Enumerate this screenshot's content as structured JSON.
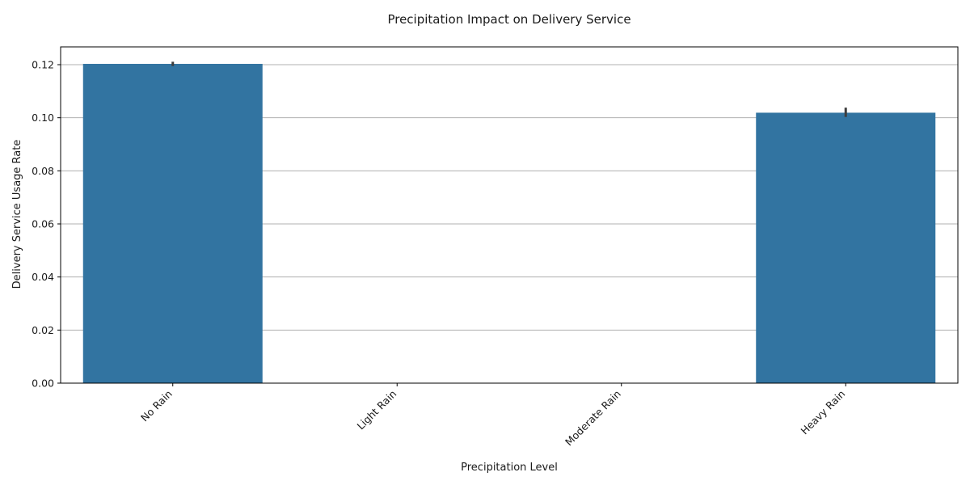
{
  "chart_data": {
    "type": "bar",
    "title": "Precipitation Impact on Delivery Service",
    "xlabel": "Precipitation Level",
    "ylabel": "Delivery Service Usage Rate",
    "categories": [
      "No Rain",
      "Light Rain",
      "Moderate Rain",
      "Heavy Rain"
    ],
    "values": [
      0.1203,
      null,
      null,
      0.1019
    ],
    "error_bars": [
      {
        "low": 0.1195,
        "high": 0.1211
      },
      null,
      null,
      {
        "low": 0.1003,
        "high": 0.1038
      }
    ],
    "ylim": [
      0,
      0.1267
    ],
    "yticks": [
      0.0,
      0.02,
      0.04,
      0.06,
      0.08,
      0.1,
      0.12
    ],
    "ytick_labels": [
      "0.00",
      "0.02",
      "0.04",
      "0.06",
      "0.08",
      "0.10",
      "0.12"
    ],
    "grid": "y-major",
    "bar_color": "#3274a1",
    "error_color": "#3d3d3d",
    "grid_color": "#b0b0b0"
  }
}
